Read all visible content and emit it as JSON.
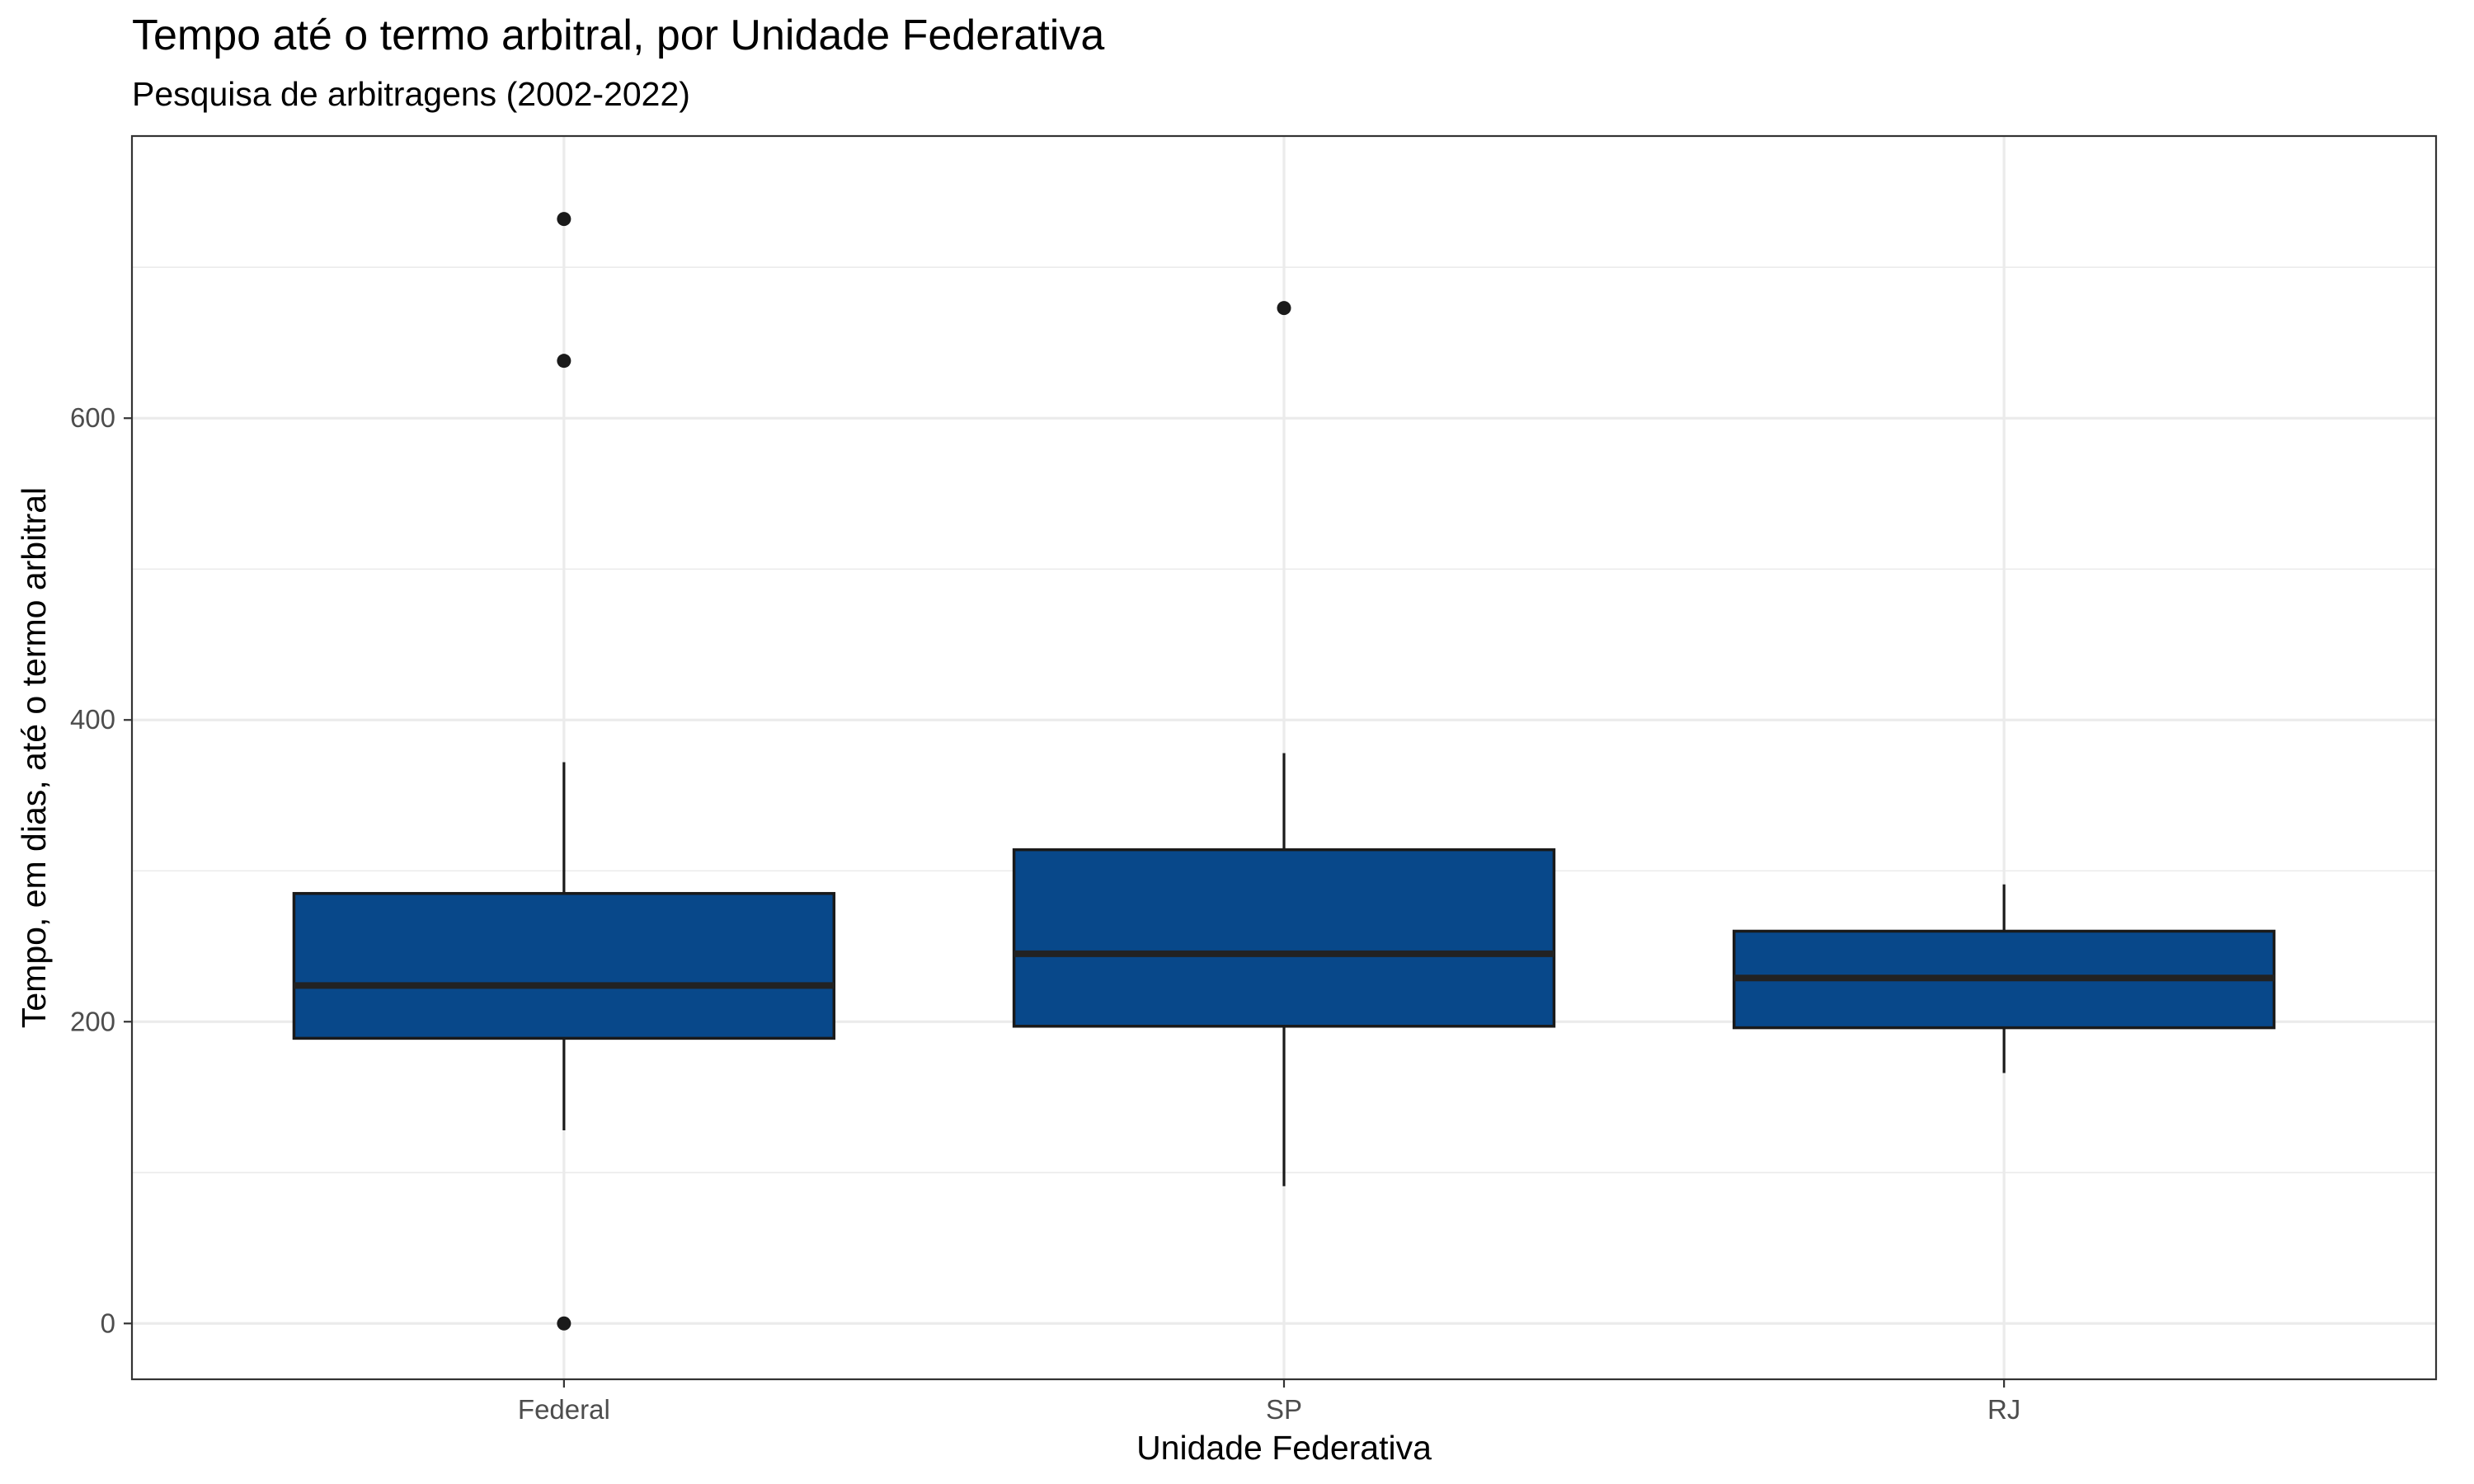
{
  "chart_data": {
    "type": "boxplot",
    "title": "Tempo até o termo arbitral, por Unidade Federativa",
    "subtitle": "Pesquisa de arbitragens (2002-2022)",
    "xlabel": "Unidade Federativa",
    "ylabel": "Tempo, em dias, até o termo arbitral",
    "ylim": [
      -37,
      787
    ],
    "yticks": [
      0,
      200,
      400,
      600
    ],
    "ytick_labels": [
      "0",
      "200",
      "400",
      "600"
    ],
    "grid": true,
    "legend": "none",
    "fill_color": "#08488A",
    "categories": [
      "Federal",
      "SP",
      "RJ"
    ],
    "boxes": [
      {
        "category": "Federal",
        "whisker_low": 128,
        "q1": 189,
        "median": 224,
        "q3": 285,
        "whisker_high": 372,
        "outliers": [
          0,
          638,
          732
        ]
      },
      {
        "category": "SP",
        "whisker_low": 91,
        "q1": 197,
        "median": 245,
        "q3": 314,
        "whisker_high": 378,
        "outliers": [
          673
        ]
      },
      {
        "category": "RJ",
        "whisker_low": 166,
        "q1": 196,
        "median": 229,
        "q3": 260,
        "whisker_high": 291,
        "outliers": []
      }
    ]
  }
}
